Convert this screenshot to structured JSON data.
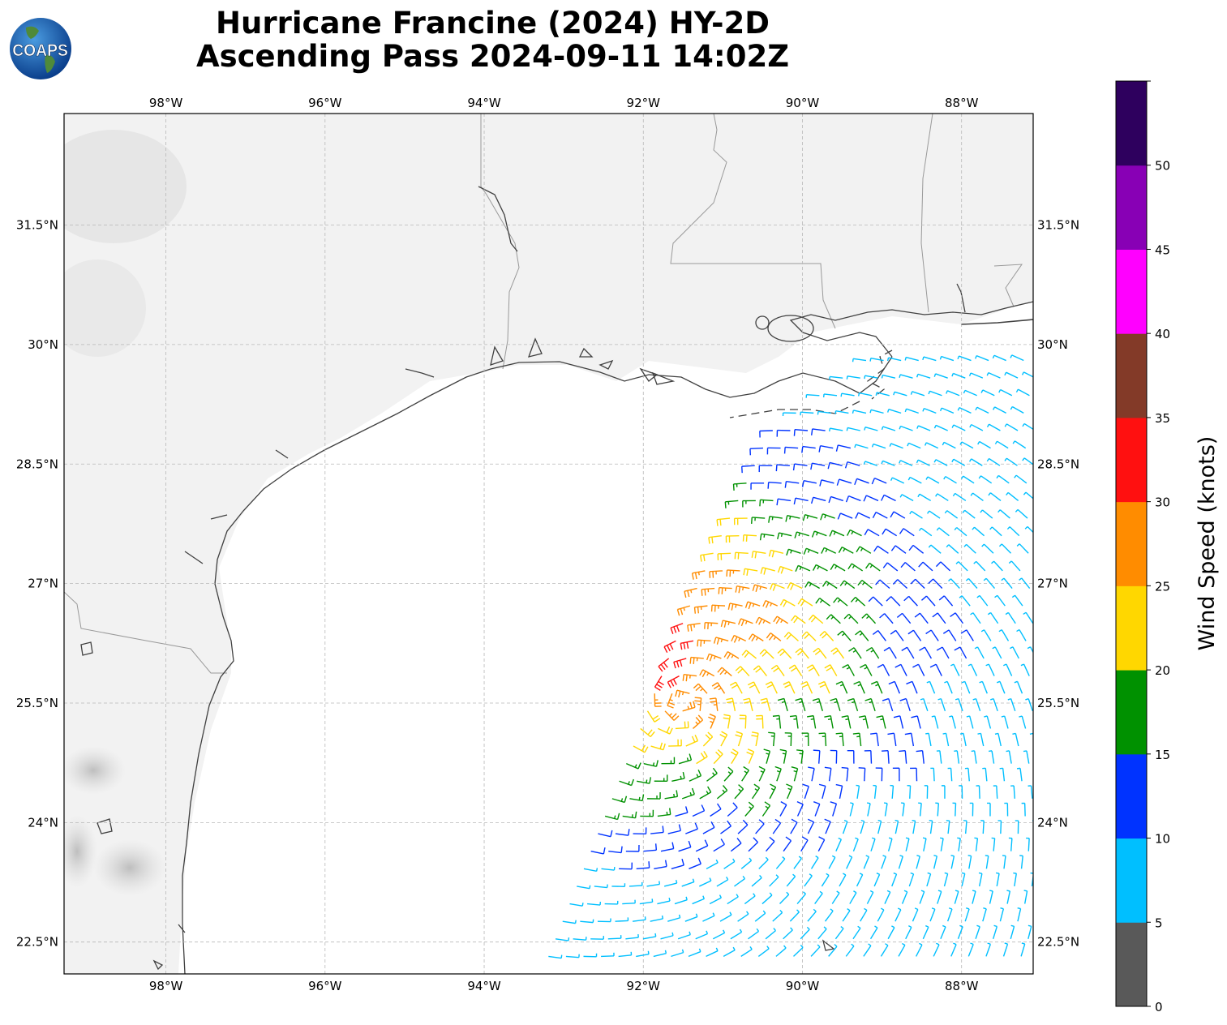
{
  "title": {
    "line1": "Hurricane Francine (2024) HY-2D",
    "line2": "Ascending Pass 2024-09-11 14:02Z"
  },
  "logo": {
    "text": "COAPS",
    "icon": "globe-icon"
  },
  "map": {
    "lon_range": [
      -99.28,
      -87.1
    ],
    "lat_range": [
      22.1,
      32.9
    ],
    "lon_ticks": [
      "98°W",
      "96°W",
      "94°W",
      "92°W",
      "90°W",
      "88°W"
    ],
    "lat_ticks": [
      "31.5°N",
      "30°N",
      "28.5°N",
      "27°N",
      "25.5°N",
      "24°N",
      "22.5°N"
    ],
    "gridlines": true,
    "background": "grayscale satellite imagery over land"
  },
  "colorbar": {
    "label": "Wind Speed (knots)",
    "ticks": [
      "0",
      "5",
      "10",
      "15",
      "20",
      "25",
      "30",
      "35",
      "40",
      "45",
      "50"
    ],
    "bins": [
      {
        "min": 0,
        "max": 5,
        "color": "#595959"
      },
      {
        "min": 5,
        "max": 10,
        "color": "#00bfff"
      },
      {
        "min": 10,
        "max": 15,
        "color": "#0033ff"
      },
      {
        "min": 15,
        "max": 20,
        "color": "#009100"
      },
      {
        "min": 20,
        "max": 25,
        "color": "#ffd700"
      },
      {
        "min": 25,
        "max": 30,
        "color": "#ff8c00"
      },
      {
        "min": 30,
        "max": 35,
        "color": "#ff1010"
      },
      {
        "min": 35,
        "max": 40,
        "color": "#833a28"
      },
      {
        "min": 40,
        "max": 45,
        "color": "#ff00ff"
      },
      {
        "min": 45,
        "max": 50,
        "color": "#8800b5"
      },
      {
        "min": 50,
        "max": 55,
        "color": "#2e005e"
      }
    ]
  },
  "wind_field": {
    "center": {
      "lon": -91.5,
      "lat": 25.5
    },
    "swath_west_edge": [
      [
        -93.2,
        22.3
      ],
      [
        -91.3,
        27.0
      ],
      [
        -90.4,
        28.9
      ],
      [
        -89.0,
        29.95
      ]
    ],
    "peak_band": {
      "lon": -91.6,
      "lat": 26.3,
      "speed_knots": 33
    }
  }
}
